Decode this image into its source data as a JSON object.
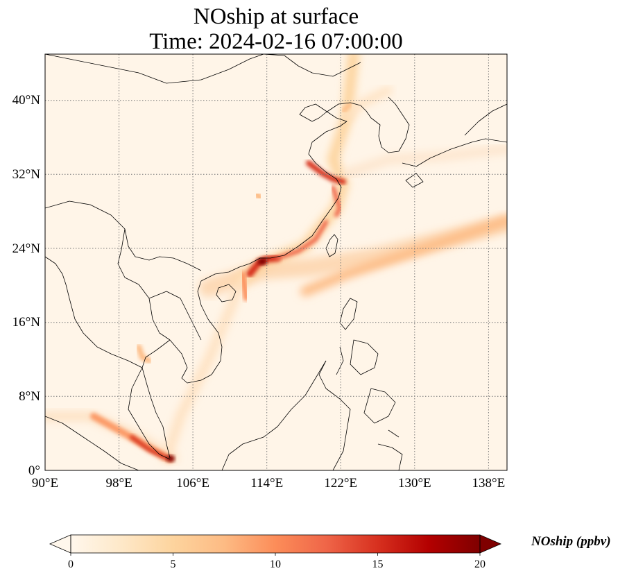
{
  "title_line1": "NOship at surface",
  "title_line2": "Time: 2024-02-16 07:00:00",
  "lat_labels": [
    "40°N",
    "32°N",
    "24°N",
    "16°N",
    "8°N",
    "0°"
  ],
  "lon_labels": [
    "90°E",
    "98°E",
    "106°E",
    "114°E",
    "122°E",
    "130°E",
    "138°E"
  ],
  "colorbar": {
    "label": "NOship (ppbv)",
    "ticks": [
      "0",
      "5",
      "10",
      "15",
      "20"
    ],
    "min": 0,
    "max": 20,
    "extend": "both",
    "colormap": "OrRd",
    "colors": [
      "#fff7ec",
      "#fee8c8",
      "#fdd49e",
      "#fdbb84",
      "#fc8d59",
      "#ef6548",
      "#d7301f",
      "#b30000",
      "#7f0000"
    ]
  },
  "map": {
    "lon_range": [
      90,
      140
    ],
    "lat_range": [
      0,
      45
    ],
    "gridlines": "dotted"
  }
}
